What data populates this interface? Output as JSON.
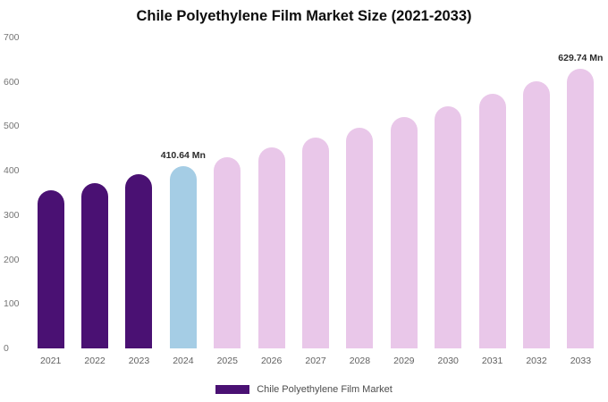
{
  "title": "Chile Polyethylene Film Market Size (2021-2033)",
  "legend": {
    "label": "Chile Polyethylene Film Market",
    "swatch_color": "#4a1173"
  },
  "colors": {
    "historical_purple": "#4a1173",
    "current_blue": "#a5cde5",
    "forecast_pink": "#e9c7e9"
  },
  "chart_data": {
    "type": "bar",
    "title": "Chile Polyethylene Film Market Size (2021-2033)",
    "xlabel": "",
    "ylabel": "",
    "unit": "Mn",
    "ylim": [
      0,
      700
    ],
    "yticks": [
      0,
      100,
      200,
      300,
      400,
      500,
      600,
      700
    ],
    "grid": false,
    "legend_position": "bottom",
    "categories": [
      "2021",
      "2022",
      "2023",
      "2024",
      "2025",
      "2026",
      "2027",
      "2028",
      "2029",
      "2030",
      "2031",
      "2032",
      "2033"
    ],
    "values": [
      356,
      373,
      392,
      410.64,
      431,
      452,
      474,
      497,
      521,
      546,
      573,
      601,
      629.74
    ],
    "data_labels": [
      "",
      "",
      "",
      "410.64 Mn",
      "",
      "",
      "",
      "",
      "",
      "",
      "",
      "",
      "629.74 Mn"
    ],
    "bar_colors": [
      "#4a1173",
      "#4a1173",
      "#4a1173",
      "#a5cde5",
      "#e9c7e9",
      "#e9c7e9",
      "#e9c7e9",
      "#e9c7e9",
      "#e9c7e9",
      "#e9c7e9",
      "#e9c7e9",
      "#e9c7e9",
      "#e9c7e9"
    ],
    "series": [
      {
        "name": "Chile Polyethylene Film Market",
        "values": [
          356,
          373,
          392,
          410.64,
          431,
          452,
          474,
          497,
          521,
          546,
          573,
          601,
          629.74
        ]
      }
    ]
  }
}
